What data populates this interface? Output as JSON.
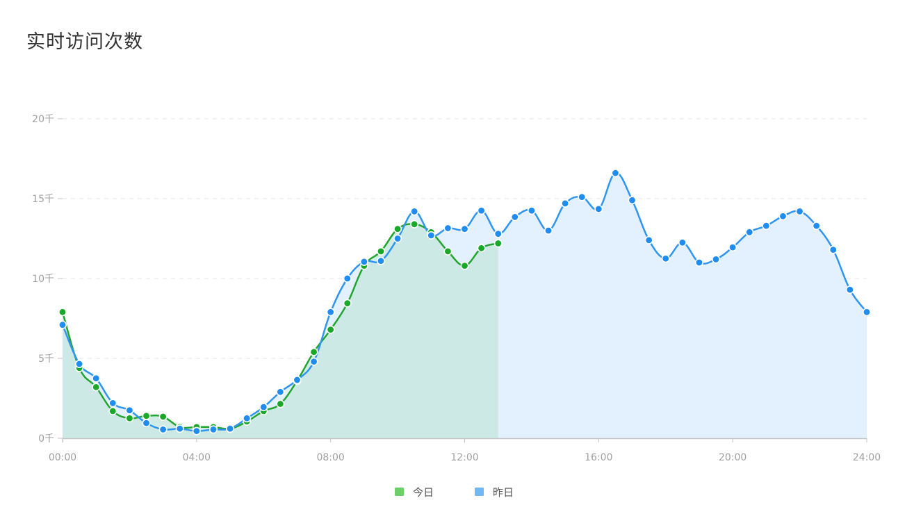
{
  "title": "实时访问次数",
  "colors": {
    "today_line": "#22a52f",
    "today_marker": "#1aa828",
    "today_fill": "#c9e8e0",
    "today_legend": "#6ccf6c",
    "yesterday_line": "#2f95f0",
    "yesterday_marker": "#1e8cf0",
    "yesterday_fill": "#e3f0fd",
    "yesterday_legend": "#6fb8f5",
    "grid": "#e6e6e6",
    "axis": "#c4c4c4"
  },
  "chart_data": {
    "type": "area",
    "title": "实时访问次数",
    "xlabel": "",
    "ylabel": "",
    "x_unit": "hours",
    "xlim": [
      0,
      24
    ],
    "ylim": [
      0,
      20000
    ],
    "x_ticks": [
      0,
      4,
      8,
      12,
      16,
      20,
      24
    ],
    "x_tick_labels": [
      "00:00",
      "04:00",
      "08:00",
      "12:00",
      "16:00",
      "20:00",
      "24:00"
    ],
    "y_ticks": [
      0,
      5000,
      10000,
      15000,
      20000
    ],
    "y_tick_labels": [
      "0千",
      "5千",
      "10千",
      "15千",
      "20千"
    ],
    "grid": true,
    "legend_position": "bottom-center",
    "series": [
      {
        "name": "今日",
        "x": [
          0,
          0.5,
          1,
          1.5,
          2,
          2.5,
          3,
          3.5,
          4,
          4.5,
          5,
          5.5,
          6,
          6.5,
          7,
          7.5,
          8,
          8.5,
          9,
          9.5,
          10,
          10.5,
          11,
          11.5,
          12,
          12.5,
          13
        ],
        "values": [
          7900,
          4400,
          3200,
          1700,
          1250,
          1400,
          1350,
          700,
          700,
          700,
          600,
          1050,
          1700,
          2150,
          3600,
          5400,
          6800,
          8450,
          10800,
          11700,
          13100,
          13400,
          12900,
          11700,
          10800,
          11900,
          12200
        ]
      },
      {
        "name": "昨日",
        "x": [
          0,
          0.5,
          1,
          1.5,
          2,
          2.5,
          3,
          3.5,
          4,
          4.5,
          5,
          5.5,
          6,
          6.5,
          7,
          7.5,
          8,
          8.5,
          9,
          9.5,
          10,
          10.5,
          11,
          11.5,
          12,
          12.5,
          13,
          13.5,
          14,
          14.5,
          15,
          15.5,
          16,
          16.5,
          17,
          17.5,
          18,
          18.5,
          19,
          19.5,
          20,
          20.5,
          21,
          21.5,
          22,
          22.5,
          23,
          23.5,
          24
        ],
        "values": [
          7100,
          4650,
          3750,
          2200,
          1750,
          950,
          550,
          600,
          450,
          550,
          600,
          1250,
          1950,
          2900,
          3650,
          4800,
          7900,
          10000,
          11050,
          11100,
          12500,
          14200,
          12700,
          13150,
          13100,
          14250,
          12800,
          13850,
          14250,
          13000,
          14700,
          15100,
          14350,
          16600,
          14900,
          12400,
          11250,
          12250,
          11000,
          11200,
          11950,
          12900,
          13300,
          13900,
          14200,
          13300,
          11800,
          9300,
          7900
        ]
      }
    ]
  }
}
